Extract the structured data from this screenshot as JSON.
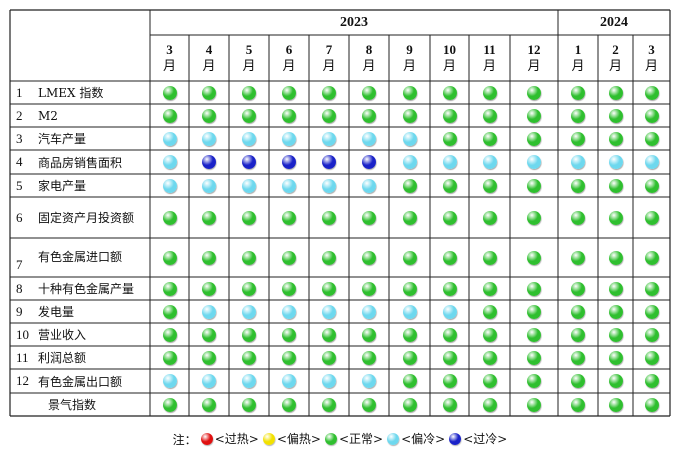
{
  "header": {
    "years": [
      {
        "label": "2023"
      },
      {
        "label": "2024"
      }
    ],
    "months": [
      {
        "num": "3",
        "unit": "月"
      },
      {
        "num": "4",
        "unit": "月"
      },
      {
        "num": "5",
        "unit": "月"
      },
      {
        "num": "6",
        "unit": "月"
      },
      {
        "num": "7",
        "unit": "月"
      },
      {
        "num": "8",
        "unit": "月"
      },
      {
        "num": "9",
        "unit": "月"
      },
      {
        "num": "10",
        "unit": "月"
      },
      {
        "num": "11",
        "unit": "月"
      },
      {
        "num": "12",
        "unit": "月"
      },
      {
        "num": "1",
        "unit": "月"
      },
      {
        "num": "2",
        "unit": "月"
      },
      {
        "num": "3",
        "unit": "月"
      }
    ]
  },
  "status_colors": {
    "G": "#2fbf2f",
    "C": "#6ed8ee",
    "B": "#1a22c8",
    "Y": "#f2e100",
    "R": "#e01010"
  },
  "rows": [
    {
      "index": "1",
      "label": "LMEX 指数",
      "values": [
        "G",
        "G",
        "G",
        "G",
        "G",
        "G",
        "G",
        "G",
        "G",
        "G",
        "G",
        "G",
        "G"
      ]
    },
    {
      "index": "2",
      "label": "M2",
      "values": [
        "G",
        "G",
        "G",
        "G",
        "G",
        "G",
        "G",
        "G",
        "G",
        "G",
        "G",
        "G",
        "G"
      ]
    },
    {
      "index": "3",
      "label": "汽车产量",
      "values": [
        "C",
        "C",
        "C",
        "C",
        "C",
        "C",
        "C",
        "G",
        "G",
        "G",
        "G",
        "G",
        "G"
      ]
    },
    {
      "index": "4",
      "label": "商品房销售面积",
      "values": [
        "C",
        "B",
        "B",
        "B",
        "B",
        "B",
        "C",
        "C",
        "C",
        "C",
        "C",
        "C",
        "C"
      ]
    },
    {
      "index": "5",
      "label": "家电产量",
      "values": [
        "C",
        "C",
        "C",
        "C",
        "C",
        "C",
        "G",
        "G",
        "G",
        "G",
        "G",
        "G",
        "G"
      ]
    },
    {
      "index": "6",
      "label": "固定资产月投资额",
      "values": [
        "G",
        "G",
        "G",
        "G",
        "G",
        "G",
        "G",
        "G",
        "G",
        "G",
        "G",
        "G",
        "G"
      ]
    },
    {
      "index": "7",
      "label": "有色金属进口额",
      "values": [
        "G",
        "G",
        "G",
        "G",
        "G",
        "G",
        "G",
        "G",
        "G",
        "G",
        "G",
        "G",
        "G"
      ]
    },
    {
      "index": "8",
      "label": "十种有色金属产量",
      "values": [
        "G",
        "G",
        "G",
        "G",
        "G",
        "G",
        "G",
        "G",
        "G",
        "G",
        "G",
        "G",
        "G"
      ]
    },
    {
      "index": "9",
      "label": "发电量",
      "values": [
        "G",
        "C",
        "C",
        "C",
        "C",
        "C",
        "C",
        "C",
        "G",
        "G",
        "G",
        "G",
        "G"
      ]
    },
    {
      "index": "10",
      "label": "营业收入",
      "values": [
        "G",
        "G",
        "G",
        "G",
        "G",
        "G",
        "G",
        "G",
        "G",
        "G",
        "G",
        "G",
        "G"
      ]
    },
    {
      "index": "11",
      "label": "利润总额",
      "values": [
        "G",
        "G",
        "G",
        "G",
        "G",
        "G",
        "G",
        "G",
        "G",
        "G",
        "G",
        "G",
        "G"
      ]
    },
    {
      "index": "12",
      "label": "有色金属出口额",
      "values": [
        "C",
        "C",
        "C",
        "C",
        "C",
        "C",
        "G",
        "G",
        "G",
        "G",
        "G",
        "G",
        "G"
      ]
    },
    {
      "index": "",
      "label": "景气指数",
      "values": [
        "G",
        "G",
        "G",
        "G",
        "G",
        "G",
        "G",
        "G",
        "G",
        "G",
        "G",
        "G",
        "G"
      ]
    }
  ],
  "legend": {
    "prefix": "注：",
    "items": [
      {
        "color": "R",
        "label": "<过热>"
      },
      {
        "color": "Y",
        "label": "<偏热>"
      },
      {
        "color": "G",
        "label": "<正常>"
      },
      {
        "color": "C",
        "label": "<偏冷>"
      },
      {
        "color": "B",
        "label": "<过冷>"
      }
    ]
  }
}
